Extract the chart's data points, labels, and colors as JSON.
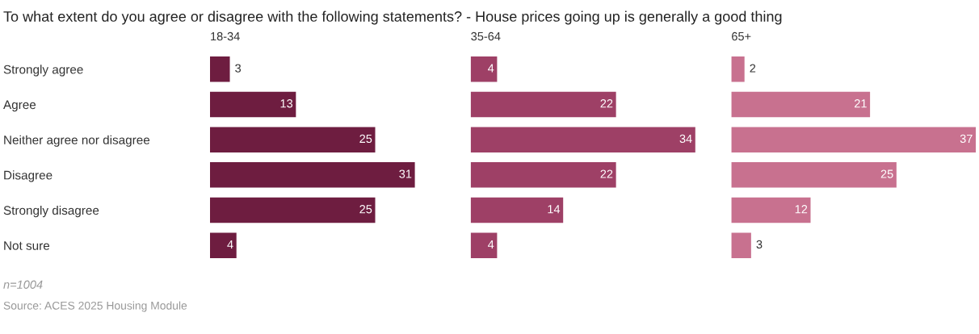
{
  "chart_data": [
    {
      "type": "bar",
      "orientation": "horizontal",
      "title": "18-34",
      "categories": [
        "Strongly agree",
        "Agree",
        "Neither agree nor disagree",
        "Disagree",
        "Strongly disagree",
        "Not sure"
      ],
      "values": [
        3,
        13,
        25,
        31,
        25,
        4
      ],
      "color": "#6e1d40",
      "data_labels": true,
      "tick_labels": "y",
      "grid": false,
      "legend": false,
      "annotations": [
        "To what extent do you agree or disagree with the following statements? - House prices going up is generally a good thing",
        "n=1004",
        "Source: ACES 2025 Housing Module"
      ]
    },
    {
      "type": "bar",
      "orientation": "horizontal",
      "title": "35-64",
      "categories": [
        null,
        null,
        null,
        null,
        null,
        null
      ],
      "values": [
        4,
        22,
        34,
        22,
        14,
        4
      ],
      "color": "#9e4066",
      "data_labels": true,
      "tick_labels": false,
      "grid": false,
      "legend": false
    },
    {
      "type": "bar",
      "orientation": "horizontal",
      "title": "65+",
      "categories": [
        null,
        null,
        null,
        null,
        null,
        null
      ],
      "values": [
        2,
        21,
        37,
        25,
        12,
        3
      ],
      "color": "#c8718f",
      "data_labels": true,
      "tick_labels": false,
      "grid": false,
      "legend": false
    }
  ]
}
